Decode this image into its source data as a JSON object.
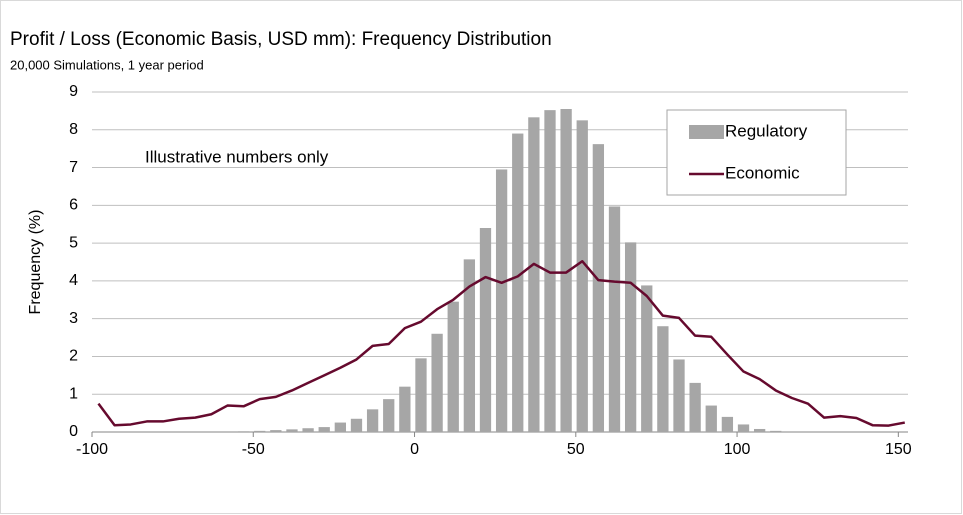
{
  "chart_data": {
    "type": "bar",
    "title": "Profit / Loss (Economic Basis, USD mm): Frequency Distribution",
    "subtitle": "20,000 Simulations, 1 year period",
    "y_label": "Frequency (%)",
    "annotation": "Illustrative numbers only",
    "annotation_color": "#ff0000",
    "x": [
      -98,
      -93,
      -88,
      -83,
      -78,
      -73,
      -68,
      -63,
      -58,
      -53,
      -48,
      -43,
      -38,
      -33,
      -28,
      -23,
      -18,
      -13,
      -8,
      -3,
      2,
      7,
      12,
      17,
      22,
      27,
      32,
      37,
      42,
      47,
      52,
      57,
      62,
      67,
      72,
      77,
      82,
      87,
      92,
      97,
      102,
      107,
      112,
      117,
      122,
      127,
      132,
      137,
      142,
      147,
      152
    ],
    "series": [
      {
        "name": "Regulatory",
        "type": "bar",
        "color": "#a6a6a6",
        "values": [
          0,
          0,
          0,
          0,
          0,
          0,
          0,
          0,
          0,
          0.02,
          0.03,
          0.05,
          0.07,
          0.1,
          0.13,
          0.25,
          0.35,
          0.6,
          0.87,
          1.2,
          1.95,
          2.6,
          3.45,
          4.57,
          5.4,
          6.95,
          7.9,
          8.33,
          8.52,
          8.55,
          8.25,
          7.62,
          5.97,
          5.02,
          3.88,
          2.8,
          1.92,
          1.3,
          0.7,
          0.4,
          0.2,
          0.08,
          0.03,
          0,
          0,
          0,
          0,
          0,
          0,
          0,
          0
        ]
      },
      {
        "name": "Economic",
        "type": "line",
        "color": "#660a2e",
        "values": [
          0.75,
          0.18,
          0.2,
          0.28,
          0.28,
          0.35,
          0.38,
          0.47,
          0.7,
          0.68,
          0.87,
          0.93,
          1.1,
          1.3,
          1.5,
          1.7,
          1.92,
          2.28,
          2.33,
          2.75,
          2.92,
          3.25,
          3.5,
          3.85,
          4.1,
          3.95,
          4.12,
          4.45,
          4.22,
          4.22,
          4.52,
          4.02,
          3.98,
          3.95,
          3.6,
          3.08,
          3.02,
          2.55,
          2.52,
          2.05,
          1.6,
          1.4,
          1.1,
          0.9,
          0.75,
          0.38,
          0.42,
          0.37,
          0.18,
          0.17,
          0.25
        ]
      }
    ],
    "xlim": [
      -100,
      153
    ],
    "xticks": [
      -100,
      -50,
      0,
      50,
      100,
      150
    ],
    "ylim": [
      0,
      9
    ],
    "yticks": [
      0,
      1,
      2,
      3,
      4,
      5,
      6,
      7,
      8,
      9
    ],
    "grid": true,
    "legend": "upper right"
  }
}
